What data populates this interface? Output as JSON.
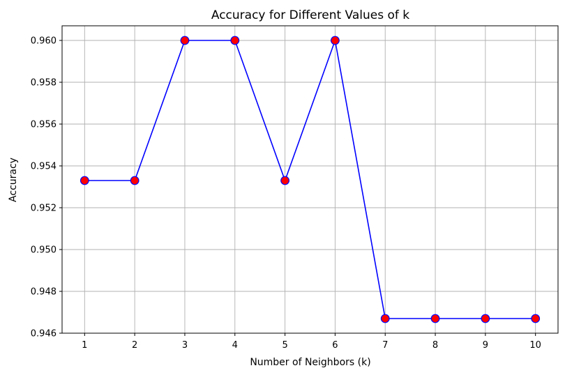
{
  "chart_data": {
    "type": "line",
    "title": "Accuracy for Different Values of k",
    "xlabel": "Number of Neighbors (k)",
    "ylabel": "Accuracy",
    "x": [
      1,
      2,
      3,
      4,
      5,
      6,
      7,
      8,
      9,
      10
    ],
    "series": [
      {
        "values": [
          0.9533,
          0.9533,
          0.96,
          0.96,
          0.9533,
          0.96,
          0.9467,
          0.9467,
          0.9467,
          0.9467
        ]
      }
    ],
    "xticks": [
      "1",
      "2",
      "3",
      "4",
      "5",
      "6",
      "7",
      "8",
      "9",
      "10"
    ],
    "yticks": [
      "0.946",
      "0.948",
      "0.950",
      "0.952",
      "0.954",
      "0.956",
      "0.958",
      "0.960"
    ],
    "xlim": [
      0.55,
      10.45
    ],
    "ylim": [
      0.946,
      0.9607
    ],
    "grid": true,
    "line_color": "#0000ff",
    "marker_face_color": "#ff0000",
    "marker_edge_color": "#0000ff"
  }
}
